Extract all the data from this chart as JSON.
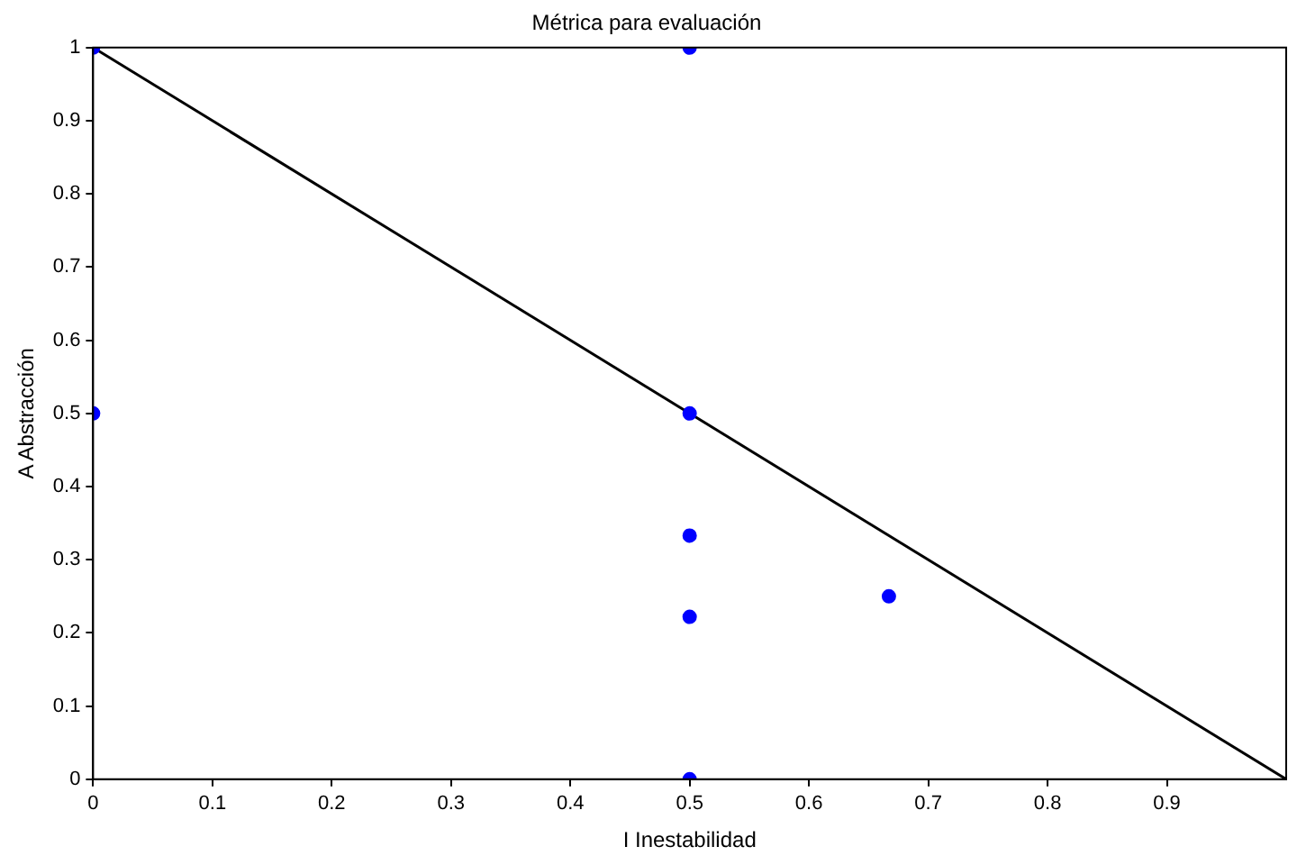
{
  "chart_data": {
    "type": "scatter",
    "title": "Métrica para evaluación",
    "xlabel": "I Inestabilidad",
    "ylabel": "A Abstracción",
    "xlim": [
      0,
      1
    ],
    "ylim": [
      0,
      1
    ],
    "xticks": [
      0,
      0.1,
      0.2,
      0.3,
      0.4,
      0.5,
      0.6,
      0.7,
      0.8,
      0.9
    ],
    "yticks": [
      0,
      0.1,
      0.2,
      0.3,
      0.4,
      0.5,
      0.6,
      0.7,
      0.8,
      0.9,
      1
    ],
    "grid": false,
    "legend": false,
    "marker": "circle",
    "series": [
      {
        "type": "scatter",
        "color": "#0000ff",
        "x": [
          0,
          0.5,
          0,
          0.5,
          0.5,
          0.5,
          0.667,
          0.5
        ],
        "values": [
          1,
          1,
          0.5,
          0.5,
          0.333,
          0.222,
          0.25,
          0
        ]
      },
      {
        "type": "line",
        "color": "#000000",
        "x": [
          0,
          1
        ],
        "values": [
          1,
          0
        ],
        "marker": "none",
        "line_style": "solid"
      }
    ]
  }
}
